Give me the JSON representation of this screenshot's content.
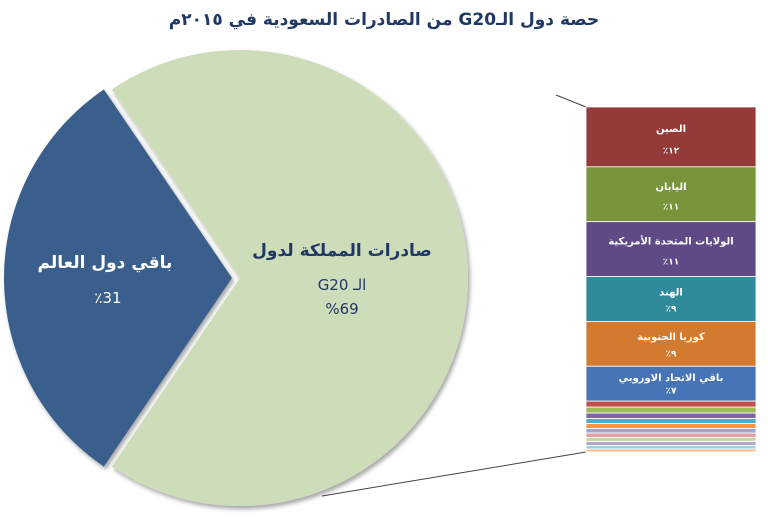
{
  "chart_data": {
    "type": "pie",
    "title": "حصة دول الـG20 من الصادرات السعودية في ٢٠١٥م",
    "slices": [
      {
        "label_line1": "صادرات المملكة لدول",
        "label_line2": "الـ G20",
        "value_label": "%69",
        "value": 69,
        "color": "#cddcb9"
      },
      {
        "label_line1": "باقي دول العالم",
        "label_line2": "",
        "value_label": "٪31",
        "value": 31,
        "color": "#3b5f8c"
      }
    ],
    "breakdown": {
      "type": "stacked-bar",
      "of_slice": "صادرات المملكة لدول الـ G20",
      "segments": [
        {
          "label": "الصين",
          "value_label": "١٢٪",
          "value": 12,
          "color": "#943a38"
        },
        {
          "label": "اليابان",
          "value_label": "١١٪",
          "value": 11,
          "color": "#77953a"
        },
        {
          "label": "الولايات المتحدة الأمريكية",
          "value_label": "١١٪",
          "value": 11,
          "color": "#5f4a85"
        },
        {
          "label": "الهند",
          "value_label": "٩٪",
          "value": 9,
          "color": "#2f8a9c"
        },
        {
          "label": "كوريا الجنوبية",
          "value_label": "٩٪",
          "value": 9,
          "color": "#d17a30"
        },
        {
          "label": "باقي الاتحاد الاوروبي",
          "value_label": "٧٪",
          "value": 7,
          "color": "#4674b6"
        },
        {
          "label": "",
          "value_label": "",
          "value": 1.2,
          "color": "#c0504d"
        },
        {
          "label": "",
          "value_label": "",
          "value": 1.2,
          "color": "#9bbb59"
        },
        {
          "label": "",
          "value_label": "",
          "value": 1.1,
          "color": "#8064a2"
        },
        {
          "label": "",
          "value_label": "",
          "value": 1.0,
          "color": "#4bacc6"
        },
        {
          "label": "",
          "value_label": "",
          "value": 1.0,
          "color": "#f79646"
        },
        {
          "label": "",
          "value_label": "",
          "value": 0.9,
          "color": "#9aa7d8"
        },
        {
          "label": "",
          "value_label": "",
          "value": 0.9,
          "color": "#e4a0a0"
        },
        {
          "label": "",
          "value_label": "",
          "value": 0.8,
          "color": "#c6d9a0"
        },
        {
          "label": "",
          "value_label": "",
          "value": 0.8,
          "color": "#b4a7cc"
        },
        {
          "label": "",
          "value_label": "",
          "value": 0.7,
          "color": "#9ed2e0"
        },
        {
          "label": "",
          "value_label": "",
          "value": 0.6,
          "color": "#f9c08f"
        }
      ]
    },
    "legend": "none",
    "grid": false
  }
}
